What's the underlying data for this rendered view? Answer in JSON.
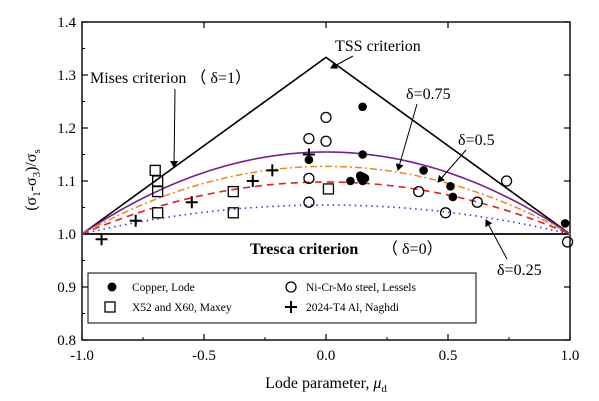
{
  "chart_data": {
    "type": "scatter",
    "xlabel_main": "Lode parameter, ",
    "xlabel_mu": "μ",
    "xlabel_sub": "d",
    "ylabel_parts": {
      "open": "(σ",
      "sub1": "1",
      "mid": "-σ",
      "sub3": "3",
      "close": ")/σ",
      "subs": "s"
    },
    "xlim": [
      -1.0,
      1.0
    ],
    "ylim": [
      0.8,
      1.4
    ],
    "x_ticks": [
      "-1.0",
      "-0.5",
      "0.0",
      "0.5",
      "1.0"
    ],
    "x_tick_values": [
      -1.0,
      -0.5,
      0.0,
      0.5,
      1.0
    ],
    "y_ticks": [
      "0.8",
      "0.9",
      "1.0",
      "1.1",
      "1.2",
      "1.3",
      "1.4"
    ],
    "y_tick_values": [
      0.8,
      0.9,
      1.0,
      1.1,
      1.2,
      1.3,
      1.4
    ],
    "criteria": {
      "tss": {
        "label": "TSS criterion",
        "x": [
          -1.0,
          0.0,
          1.0
        ],
        "y": [
          1.0,
          1.3333,
          1.0
        ],
        "color": "#000000"
      },
      "tresca": {
        "label": "Tresca criterion",
        "delta_label": "（ δ=0）",
        "x": [
          -1.0,
          1.0
        ],
        "y": [
          1.0,
          1.0
        ],
        "color": "#000000"
      },
      "mises": {
        "label": "Mises criterion （ δ=1）",
        "peak": 0.1547,
        "color": "#7a1f8f"
      },
      "delta_075": {
        "label": "δ=0.75",
        "peak": 0.1276,
        "color": "#e8891a"
      },
      "delta_05": {
        "label": "δ=0.5",
        "peak": 0.0981,
        "color": "#e02020"
      },
      "delta_025": {
        "label": "δ=0.25",
        "peak": 0.0547,
        "color": "#2a3fd6"
      }
    },
    "series": [
      {
        "name": "Copper, Lode",
        "marker": "filled-circle",
        "points": [
          [
            -0.07,
            1.14
          ],
          [
            0.1,
            1.1
          ],
          [
            0.14,
            1.11
          ],
          [
            0.15,
            1.1
          ],
          [
            0.16,
            1.105
          ],
          [
            0.15,
            1.15
          ],
          [
            0.15,
            1.24
          ],
          [
            0.4,
            1.12
          ],
          [
            0.51,
            1.09
          ],
          [
            0.52,
            1.07
          ],
          [
            0.98,
            1.02
          ]
        ]
      },
      {
        "name": "Ni-Cr-Mo steel, Lessels",
        "marker": "open-circle",
        "points": [
          [
            -0.07,
            1.18
          ],
          [
            -0.07,
            1.105
          ],
          [
            -0.07,
            1.06
          ],
          [
            0.0,
            1.22
          ],
          [
            0.0,
            1.175
          ],
          [
            0.15,
            1.105
          ],
          [
            0.38,
            1.08
          ],
          [
            0.49,
            1.04
          ],
          [
            0.62,
            1.06
          ],
          [
            0.74,
            1.1
          ],
          [
            0.99,
            0.985
          ]
        ]
      },
      {
        "name": "X52 and X60, Maxey",
        "marker": "open-square",
        "points": [
          [
            -0.7,
            1.12
          ],
          [
            -0.69,
            1.1
          ],
          [
            -0.69,
            1.08
          ],
          [
            -0.69,
            1.04
          ],
          [
            -0.38,
            1.08
          ],
          [
            -0.38,
            1.04
          ],
          [
            0.01,
            1.085
          ]
        ]
      },
      {
        "name": "2024-T4 Al, Naghdi",
        "marker": "plus",
        "points": [
          [
            -0.92,
            0.99
          ],
          [
            -0.78,
            1.025
          ],
          [
            -0.55,
            1.06
          ],
          [
            -0.3,
            1.1
          ],
          [
            -0.22,
            1.12
          ],
          [
            -0.07,
            1.15
          ]
        ]
      }
    ],
    "legend": {
      "placement": "bottom-left",
      "entries": [
        "Copper, Lode",
        "Ni-Cr-Mo steel, Lessels",
        "X52 and X60, Maxey",
        "2024-T4 Al, Naghdi"
      ]
    }
  }
}
